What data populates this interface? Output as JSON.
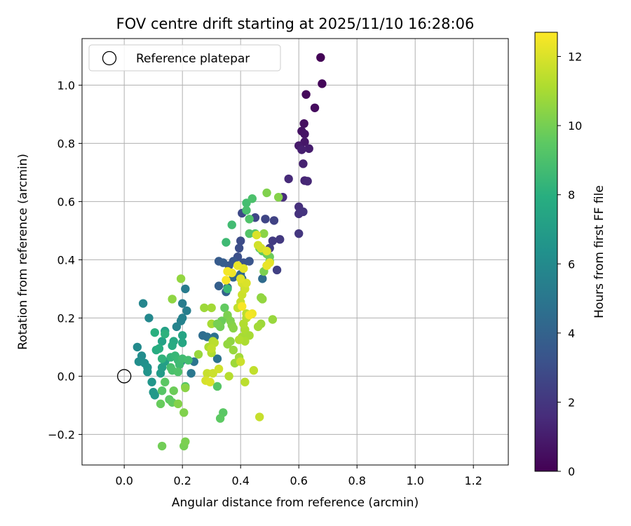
{
  "chart_data": {
    "type": "scatter",
    "title": "FOV centre drift starting at 2025/11/10 16:28:06",
    "xlabel": "Angular distance from reference (arcmin)",
    "ylabel": "Rotation from reference (arcmin)",
    "xlim": [
      -0.145,
      1.32
    ],
    "ylim": [
      -0.305,
      1.16
    ],
    "xticks": [
      0.0,
      0.2,
      0.4,
      0.6,
      0.8,
      1.0,
      1.2
    ],
    "xtick_labels": [
      "0.0",
      "0.2",
      "0.4",
      "0.6",
      "0.8",
      "1.0",
      "1.2"
    ],
    "yticks": [
      -0.2,
      0.0,
      0.2,
      0.4,
      0.6,
      0.8,
      1.0
    ],
    "ytick_labels": [
      "−0.2",
      "0.0",
      "0.2",
      "0.4",
      "0.6",
      "0.8",
      "1.0"
    ],
    "grid": true,
    "legend": {
      "position": "top-left",
      "entries": [
        "Reference platepar"
      ]
    },
    "reference_point": {
      "x": 0.0,
      "y": 0.0,
      "label": "Reference platepar"
    },
    "colorbar": {
      "label": "Hours from first FF file",
      "range": [
        0,
        12.7
      ],
      "ticks": [
        0,
        2,
        4,
        6,
        8,
        10,
        12
      ],
      "tick_labels": [
        "0",
        "2",
        "4",
        "6",
        "8",
        "10",
        "12"
      ],
      "colormap": "viridis"
    },
    "series": [
      {
        "name": "FOV centre",
        "points": [
          [
            0.675,
            1.095,
            0.1
          ],
          [
            0.68,
            1.005,
            0.2
          ],
          [
            0.625,
            0.968,
            0.3
          ],
          [
            0.655,
            0.922,
            0.4
          ],
          [
            0.618,
            0.868,
            0.5
          ],
          [
            0.61,
            0.842,
            0.6
          ],
          [
            0.62,
            0.832,
            0.7
          ],
          [
            0.62,
            0.805,
            0.8
          ],
          [
            0.6,
            0.792,
            0.9
          ],
          [
            0.635,
            0.782,
            1.0
          ],
          [
            0.61,
            0.778,
            1.1
          ],
          [
            0.615,
            0.73,
            1.2
          ],
          [
            0.62,
            0.672,
            1.3
          ],
          [
            0.63,
            0.67,
            1.4
          ],
          [
            0.565,
            0.678,
            1.5
          ],
          [
            0.545,
            0.615,
            1.6
          ],
          [
            0.6,
            0.582,
            1.7
          ],
          [
            0.6,
            0.558,
            1.8
          ],
          [
            0.615,
            0.565,
            1.9
          ],
          [
            0.6,
            0.49,
            2.0
          ],
          [
            0.535,
            0.47,
            2.1
          ],
          [
            0.51,
            0.465,
            2.2
          ],
          [
            0.5,
            0.44,
            2.3
          ],
          [
            0.525,
            0.365,
            2.4
          ],
          [
            0.515,
            0.535,
            2.5
          ],
          [
            0.485,
            0.54,
            2.6
          ],
          [
            0.45,
            0.545,
            2.7
          ],
          [
            0.405,
            0.56,
            2.8
          ],
          [
            0.4,
            0.465,
            2.9
          ],
          [
            0.395,
            0.44,
            3.0
          ],
          [
            0.39,
            0.41,
            3.1
          ],
          [
            0.41,
            0.39,
            3.2
          ],
          [
            0.43,
            0.395,
            3.3
          ],
          [
            0.375,
            0.395,
            3.4
          ],
          [
            0.36,
            0.38,
            3.5
          ],
          [
            0.325,
            0.395,
            3.6
          ],
          [
            0.34,
            0.39,
            3.7
          ],
          [
            0.325,
            0.31,
            3.8
          ],
          [
            0.35,
            0.29,
            3.9
          ],
          [
            0.355,
            0.305,
            4.0
          ],
          [
            0.375,
            0.34,
            4.1
          ],
          [
            0.4,
            0.35,
            4.2
          ],
          [
            0.405,
            0.335,
            4.3
          ],
          [
            0.475,
            0.335,
            4.4
          ],
          [
            0.27,
            0.14,
            4.5
          ],
          [
            0.285,
            0.135,
            4.6
          ],
          [
            0.31,
            0.135,
            4.7
          ],
          [
            0.32,
            0.06,
            4.8
          ],
          [
            0.24,
            0.05,
            4.9
          ],
          [
            0.23,
            0.01,
            5.0
          ],
          [
            0.195,
            0.05,
            5.1
          ],
          [
            0.21,
            0.3,
            5.2
          ],
          [
            0.2,
            0.25,
            5.3
          ],
          [
            0.215,
            0.225,
            5.4
          ],
          [
            0.2,
            0.2,
            5.5
          ],
          [
            0.195,
            0.19,
            5.6
          ],
          [
            0.18,
            0.17,
            5.7
          ],
          [
            0.065,
            0.25,
            5.8
          ],
          [
            0.085,
            0.2,
            5.9
          ],
          [
            0.045,
            0.1,
            6.0
          ],
          [
            0.06,
            0.07,
            6.1
          ],
          [
            0.05,
            0.05,
            6.2
          ],
          [
            0.07,
            0.045,
            6.3
          ],
          [
            0.08,
            0.03,
            6.4
          ],
          [
            0.08,
            0.015,
            6.5
          ],
          [
            0.095,
            -0.02,
            6.6
          ],
          [
            0.1,
            -0.055,
            6.7
          ],
          [
            0.105,
            -0.065,
            6.8
          ],
          [
            0.125,
            0.01,
            6.9
          ],
          [
            0.13,
            0.03,
            7.0
          ],
          [
            0.14,
            0.05,
            7.1
          ],
          [
            0.14,
            0.155,
            7.2
          ],
          [
            0.13,
            0.12,
            7.3
          ],
          [
            0.2,
            0.14,
            7.4
          ],
          [
            0.2,
            0.115,
            7.5
          ],
          [
            0.17,
            0.12,
            7.6
          ],
          [
            0.165,
            0.105,
            7.7
          ],
          [
            0.11,
            0.09,
            7.8
          ],
          [
            0.12,
            0.095,
            7.9
          ],
          [
            0.105,
            0.15,
            8.0
          ],
          [
            0.14,
            0.145,
            8.1
          ],
          [
            0.13,
            0.06,
            8.2
          ],
          [
            0.16,
            0.065,
            8.3
          ],
          [
            0.175,
            0.07,
            8.4
          ],
          [
            0.185,
            0.055,
            8.5
          ],
          [
            0.19,
            0.04,
            8.6
          ],
          [
            0.2,
            0.06,
            8.7
          ],
          [
            0.22,
            0.055,
            8.8
          ],
          [
            0.16,
            0.03,
            8.9
          ],
          [
            0.165,
            0.02,
            9.0
          ],
          [
            0.185,
            0.015,
            9.1
          ],
          [
            0.21,
            -0.035,
            9.2
          ],
          [
            0.13,
            -0.05,
            9.3
          ],
          [
            0.14,
            -0.02,
            9.4
          ],
          [
            0.155,
            -0.08,
            9.5
          ],
          [
            0.165,
            -0.09,
            9.6
          ],
          [
            0.125,
            -0.095,
            9.7
          ],
          [
            0.17,
            -0.05,
            9.8
          ],
          [
            0.13,
            -0.24,
            9.9
          ],
          [
            0.205,
            -0.24,
            10.0
          ],
          [
            0.21,
            -0.225,
            10.1
          ],
          [
            0.205,
            -0.125,
            10.2
          ],
          [
            0.185,
            -0.095,
            10.3
          ],
          [
            0.21,
            -0.04,
            10.4
          ],
          [
            0.165,
            0.265,
            10.5
          ],
          [
            0.195,
            0.335,
            10.6
          ],
          [
            0.255,
            0.075,
            10.7
          ],
          [
            0.275,
            0.235,
            10.8
          ],
          [
            0.3,
            0.235,
            10.9
          ],
          [
            0.3,
            0.18,
            11.0
          ],
          [
            0.29,
            0.1,
            11.1
          ],
          [
            0.3,
            0.08,
            11.2
          ],
          [
            0.305,
            0.12,
            11.3
          ],
          [
            0.31,
            0.115,
            11.4
          ],
          [
            0.3,
            0.095,
            11.5
          ],
          [
            0.285,
            0.01,
            11.6
          ],
          [
            0.305,
            0.01,
            11.7
          ],
          [
            0.325,
            0.025,
            11.8
          ],
          [
            0.28,
            -0.015,
            11.9
          ],
          [
            0.295,
            -0.02,
            12.0
          ],
          [
            0.32,
            -0.035,
            9.3
          ],
          [
            0.34,
            -0.125,
            9.4
          ],
          [
            0.33,
            -0.145,
            9.5
          ],
          [
            0.345,
            0.235,
            9.6
          ],
          [
            0.355,
            0.205,
            9.7
          ],
          [
            0.335,
            0.19,
            9.8
          ],
          [
            0.33,
            0.17,
            9.9
          ],
          [
            0.32,
            0.18,
            10.0
          ],
          [
            0.355,
            0.21,
            10.1
          ],
          [
            0.365,
            0.19,
            10.2
          ],
          [
            0.37,
            0.175,
            10.3
          ],
          [
            0.375,
            0.165,
            10.4
          ],
          [
            0.365,
            0.12,
            10.5
          ],
          [
            0.355,
            0.11,
            10.6
          ],
          [
            0.375,
            0.09,
            10.7
          ],
          [
            0.38,
            0.045,
            10.8
          ],
          [
            0.395,
            0.065,
            10.9
          ],
          [
            0.405,
            0.135,
            11.0
          ],
          [
            0.415,
            0.16,
            11.1
          ],
          [
            0.41,
            0.18,
            11.2
          ],
          [
            0.42,
            0.2,
            11.3
          ],
          [
            0.42,
            0.215,
            11.4
          ],
          [
            0.39,
            0.235,
            11.5
          ],
          [
            0.4,
            0.255,
            11.6
          ],
          [
            0.405,
            0.28,
            11.7
          ],
          [
            0.415,
            0.3,
            11.8
          ],
          [
            0.405,
            0.32,
            11.9
          ],
          [
            0.42,
            0.32,
            12.0
          ],
          [
            0.4,
            0.335,
            12.1
          ],
          [
            0.41,
            0.37,
            12.2
          ],
          [
            0.39,
            0.38,
            12.3
          ],
          [
            0.37,
            0.355,
            12.4
          ],
          [
            0.355,
            0.36,
            12.5
          ],
          [
            0.35,
            0.33,
            12.6
          ],
          [
            0.355,
            0.3,
            8.5
          ],
          [
            0.35,
            0.46,
            8.6
          ],
          [
            0.37,
            0.52,
            8.7
          ],
          [
            0.42,
            0.595,
            8.8
          ],
          [
            0.42,
            0.57,
            8.9
          ],
          [
            0.44,
            0.61,
            9.0
          ],
          [
            0.43,
            0.54,
            9.1
          ],
          [
            0.43,
            0.49,
            9.2
          ],
          [
            0.45,
            0.49,
            9.3
          ],
          [
            0.465,
            0.44,
            9.4
          ],
          [
            0.475,
            0.43,
            9.5
          ],
          [
            0.48,
            0.43,
            9.6
          ],
          [
            0.49,
            0.42,
            9.7
          ],
          [
            0.5,
            0.41,
            9.8
          ],
          [
            0.5,
            0.395,
            9.9
          ],
          [
            0.49,
            0.38,
            10.0
          ],
          [
            0.48,
            0.36,
            10.1
          ],
          [
            0.49,
            0.63,
            10.2
          ],
          [
            0.53,
            0.615,
            10.3
          ],
          [
            0.48,
            0.49,
            10.4
          ],
          [
            0.47,
            0.27,
            10.5
          ],
          [
            0.475,
            0.265,
            10.6
          ],
          [
            0.51,
            0.195,
            10.7
          ],
          [
            0.47,
            0.18,
            10.8
          ],
          [
            0.46,
            0.17,
            10.9
          ],
          [
            0.43,
            0.14,
            11.0
          ],
          [
            0.415,
            0.12,
            11.1
          ],
          [
            0.395,
            0.125,
            11.2
          ],
          [
            0.36,
            0.0,
            11.3
          ],
          [
            0.415,
            -0.02,
            11.4
          ],
          [
            0.445,
            0.02,
            11.5
          ],
          [
            0.465,
            -0.14,
            11.6
          ],
          [
            0.4,
            0.05,
            11.7
          ],
          [
            0.46,
            0.45,
            11.8
          ],
          [
            0.47,
            0.44,
            11.9
          ],
          [
            0.455,
            0.485,
            12.0
          ],
          [
            0.49,
            0.43,
            12.1
          ],
          [
            0.5,
            0.39,
            12.2
          ],
          [
            0.49,
            0.38,
            12.3
          ],
          [
            0.44,
            0.215,
            12.4
          ],
          [
            0.43,
            0.21,
            12.5
          ],
          [
            0.405,
            0.24,
            12.6
          ]
        ]
      }
    ]
  }
}
